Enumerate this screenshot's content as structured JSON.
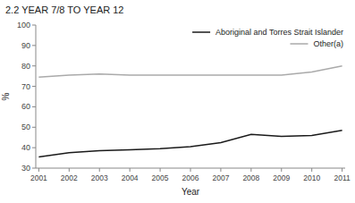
{
  "chart_data": {
    "type": "line",
    "title": "2.2 YEAR 7/8 TO YEAR 12",
    "xlabel": "Year",
    "ylabel": "%",
    "x": [
      2001,
      2002,
      2003,
      2004,
      2005,
      2006,
      2007,
      2008,
      2009,
      2010,
      2011
    ],
    "series": [
      {
        "name": "Aboriginal and Torres Strait Islander",
        "color": "#1a1a1a",
        "values": [
          35.5,
          37.5,
          38.5,
          39.0,
          39.5,
          40.5,
          42.5,
          46.5,
          45.5,
          46.0,
          48.5
        ]
      },
      {
        "name": "Other(a)",
        "color": "#aaaaaa",
        "values": [
          74.5,
          75.5,
          76.0,
          75.5,
          75.5,
          75.5,
          75.5,
          75.5,
          75.5,
          77.0,
          80.0
        ]
      }
    ],
    "xlim": [
      2000.9,
      2011.1
    ],
    "xticks": [
      2001,
      2002,
      2003,
      2004,
      2005,
      2006,
      2007,
      2008,
      2009,
      2010,
      2011
    ],
    "ylim": [
      30,
      100
    ],
    "yticks": [
      30,
      40,
      50,
      60,
      70,
      80,
      90,
      100
    ],
    "grid": false,
    "legend": "upper right"
  }
}
